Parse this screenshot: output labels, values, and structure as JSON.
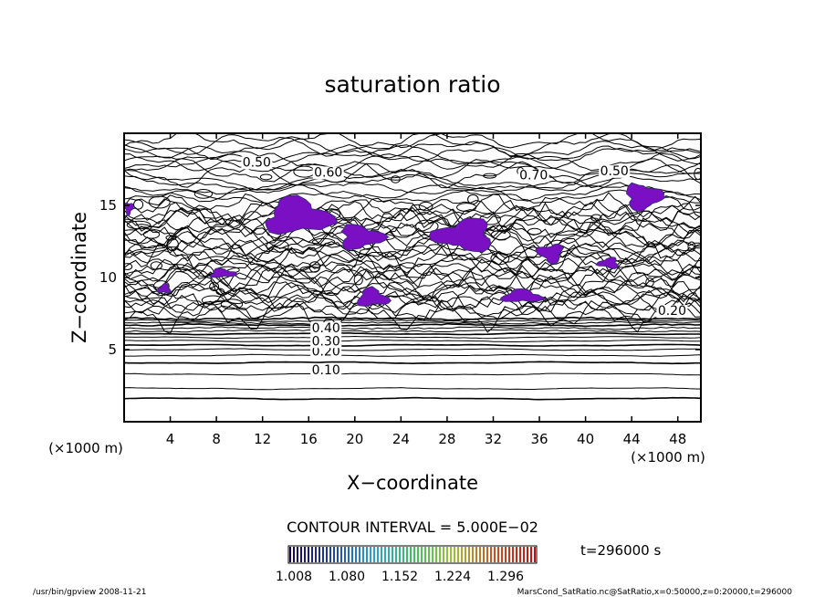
{
  "chart_data": {
    "type": "contour",
    "title": "saturation ratio",
    "xlabel": "X−coordinate",
    "ylabel": "Z−coordinate",
    "x_unit": "(×1000 m)",
    "y_unit": "(×1000 m)",
    "xlim": [
      0,
      50
    ],
    "ylim": [
      0,
      20
    ],
    "x_ticks": [
      4,
      8,
      12,
      16,
      20,
      24,
      28,
      32,
      36,
      40,
      44,
      48
    ],
    "y_ticks": [
      5,
      10,
      15
    ],
    "contour_interval": "CONTOUR INTERVAL = 5.000E−02",
    "contour_labels": [
      {
        "text": "0.10",
        "x": 17.5,
        "z": 3.3
      },
      {
        "text": "0.20",
        "x": 17.5,
        "z": 4.6
      },
      {
        "text": "0.30",
        "x": 17.5,
        "z": 5.3
      },
      {
        "text": "0.40",
        "x": 17.5,
        "z": 6.2
      },
      {
        "text": "0.50",
        "x": 11.5,
        "z": 17.7
      },
      {
        "text": "0.60",
        "x": 17.7,
        "z": 17.0
      },
      {
        "text": "0.70",
        "x": 35.5,
        "z": 16.8
      },
      {
        "text": "0.50",
        "x": 42.5,
        "z": 17.1
      },
      {
        "text": "0.20",
        "x": 47.5,
        "z": 7.4
      }
    ],
    "supersaturated_regions_color": "#7b0fc4",
    "colorbar": {
      "ticks": [
        "1.008",
        "1.080",
        "1.152",
        "1.224",
        "1.296"
      ],
      "colors": [
        "#1a0050",
        "#1f3fa8",
        "#2a9fd8",
        "#3cc060",
        "#a0c030",
        "#d05020",
        "#c01010"
      ]
    },
    "time": "t=296000 s"
  },
  "footer": {
    "left": "/usr/bin/gpview   2008-11-21",
    "right": "MarsCond_SatRatio.nc@SatRatio,x=0:50000,z=0:20000,t=296000"
  }
}
